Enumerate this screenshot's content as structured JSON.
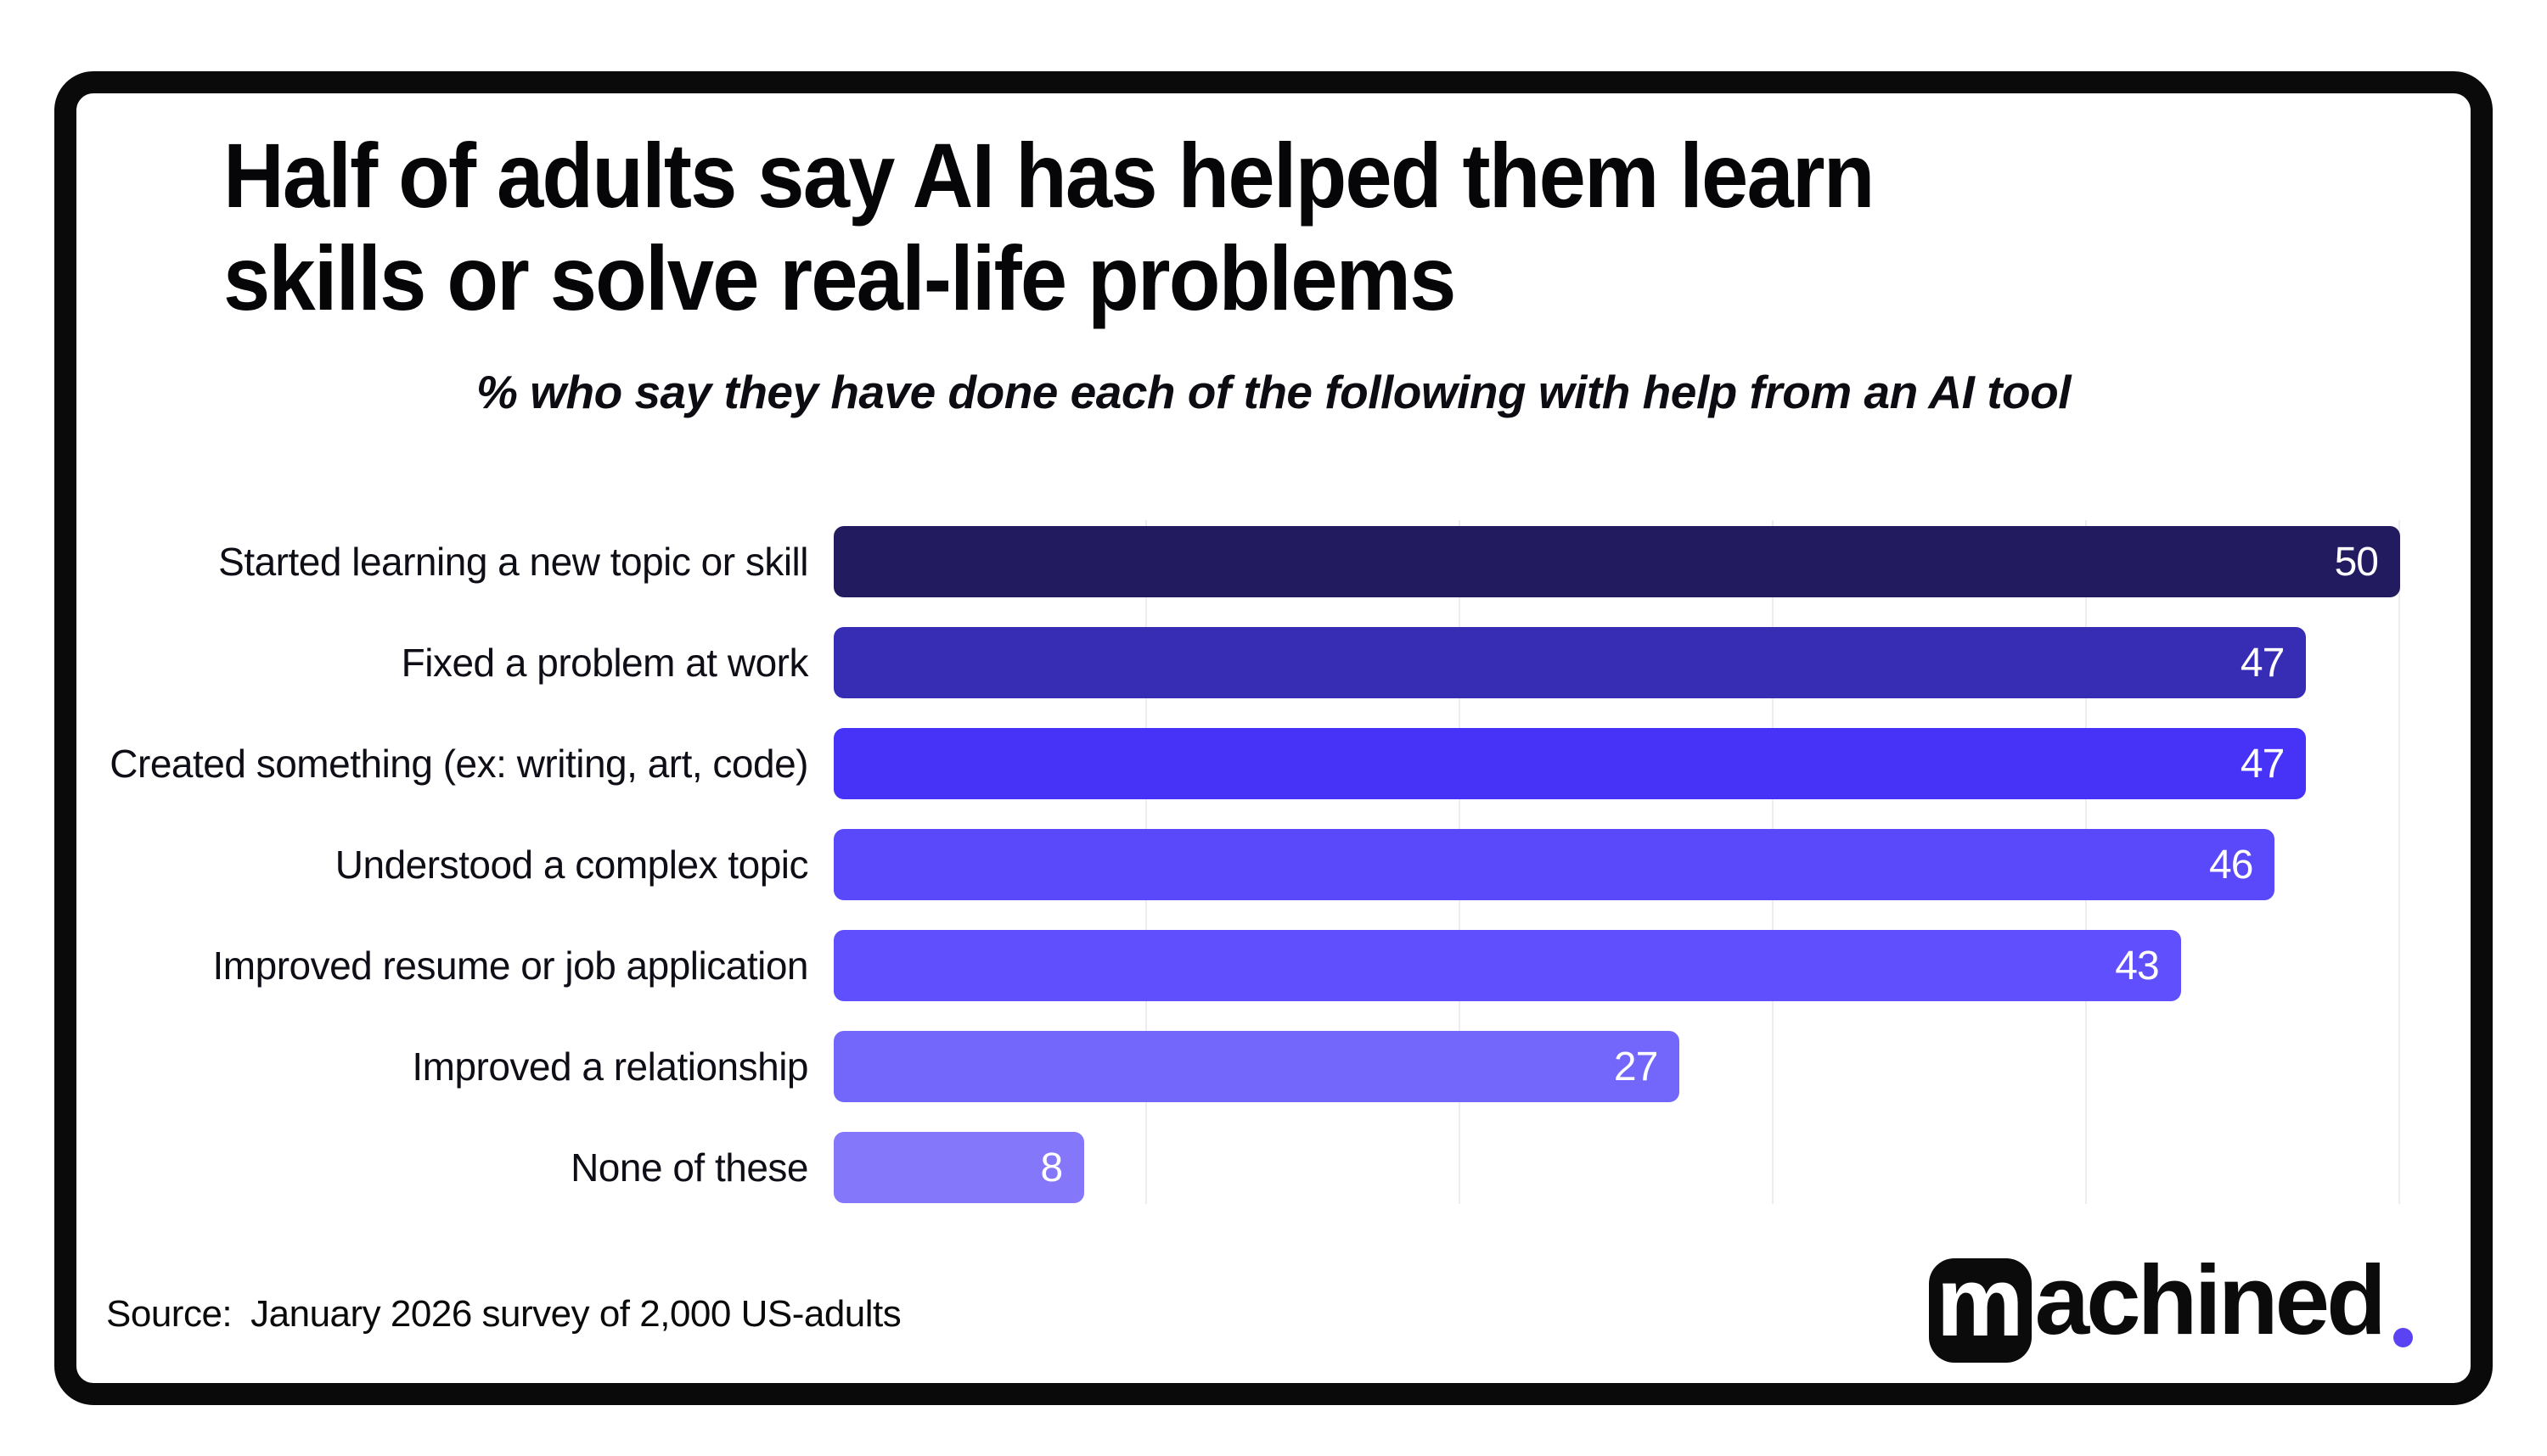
{
  "page": {
    "background": "#ffffff"
  },
  "card": {
    "border_color": "#0a0a0a",
    "background": "#ffffff"
  },
  "header": {
    "title_line1": "Half of adults say AI has helped them learn",
    "title_line2": "skills or solve real-life problems",
    "subtitle": "% who say they have done each of the following with help from an AI tool"
  },
  "chart_data": {
    "type": "bar",
    "orientation": "horizontal",
    "title": "Half of adults say AI has helped them learn skills or solve real-life problems",
    "subtitle": "% who say they have done each of the following with help from an AI tool",
    "unit": "percent of US adults",
    "categories": [
      "Started learning a new topic or skill",
      "Fixed a problem at work",
      "Created something (ex: writing, art, code)",
      "Understood a complex topic",
      "Improved resume or job application",
      "Improved a relationship",
      "None of these"
    ],
    "values": [
      50,
      47,
      47,
      46,
      43,
      27,
      8
    ],
    "bar_colors": [
      "#221b60",
      "#372cb4",
      "#4733f7",
      "#5a49fb",
      "#5f4ffc",
      "#7366fa",
      "#8577f9"
    ],
    "value_label_color": "#ffffff",
    "label_color": "#0e0e16",
    "xlim": [
      0,
      50
    ],
    "ticks": [
      10,
      20,
      30,
      40,
      50
    ],
    "gridlines": "vertical, faint",
    "gridline_color": "#ececf2",
    "legend": "none",
    "value_labels": "inside bar end, right-aligned, white"
  },
  "footer": {
    "source_prefix": "Source:",
    "source_text": "January 2026 survey of 2,000 US-adults",
    "logo": {
      "boxed_letter": "m",
      "wordmark_rest": "achined",
      "period_color": "#5a43f2",
      "box_color": "#0b0b0b",
      "text_color": "#0b0b0b"
    }
  }
}
